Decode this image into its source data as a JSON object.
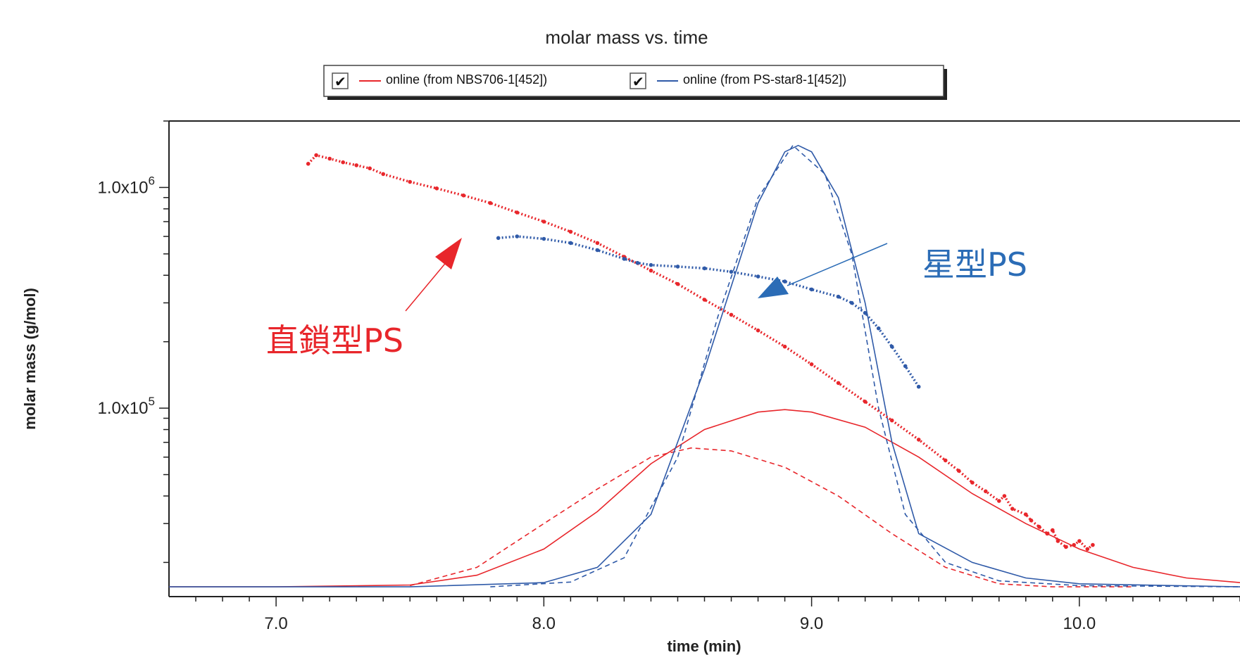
{
  "chart_data": {
    "type": "line",
    "title": "molar mass vs. time",
    "xlabel": "time (min)",
    "ylabel": "molar mass (g/mol)",
    "xlim": [
      6.6,
      10.6
    ],
    "xticks": [
      7.0,
      8.0,
      9.0,
      10.0
    ],
    "xtick_labels": [
      "7.0",
      "8.0",
      "9.0",
      "10.0"
    ],
    "y_scale": "log",
    "ylim": [
      14000,
      2000000
    ],
    "yticks": [
      {
        "value": 1000000,
        "base": "1.0x10",
        "exp": "6"
      },
      {
        "value": 100000,
        "base": "1.0x10",
        "exp": "5"
      }
    ],
    "grid": false,
    "legend": {
      "placement": "top-center",
      "entries": [
        {
          "label": "online (from NBS706-1[452])",
          "color": "#e8262b",
          "checked": true
        },
        {
          "label": "online (from PS-star8-1[452])",
          "color": "#2f5aa8",
          "checked": true
        }
      ]
    },
    "series": [
      {
        "name": "online (from NBS706-1[452])",
        "color": "#e8262b",
        "style": "dotted-markers",
        "points": [
          [
            7.12,
            1280000
          ],
          [
            7.15,
            1400000
          ],
          [
            7.2,
            1350000
          ],
          [
            7.25,
            1300000
          ],
          [
            7.3,
            1260000
          ],
          [
            7.35,
            1220000
          ],
          [
            7.4,
            1150000
          ],
          [
            7.5,
            1060000
          ],
          [
            7.6,
            990000
          ],
          [
            7.7,
            920000
          ],
          [
            7.8,
            850000
          ],
          [
            7.9,
            770000
          ],
          [
            8.0,
            700000
          ],
          [
            8.1,
            630000
          ],
          [
            8.2,
            560000
          ],
          [
            8.3,
            485000
          ],
          [
            8.4,
            420000
          ],
          [
            8.5,
            365000
          ],
          [
            8.6,
            310000
          ],
          [
            8.7,
            265000
          ],
          [
            8.8,
            225000
          ],
          [
            8.9,
            190000
          ],
          [
            9.0,
            158000
          ],
          [
            9.1,
            130000
          ],
          [
            9.2,
            107000
          ],
          [
            9.3,
            88000
          ],
          [
            9.4,
            72000
          ],
          [
            9.5,
            58000
          ],
          [
            9.55,
            52000
          ],
          [
            9.6,
            46000
          ],
          [
            9.65,
            42000
          ],
          [
            9.7,
            38000
          ],
          [
            9.72,
            40000
          ],
          [
            9.75,
            35000
          ],
          [
            9.8,
            33000
          ],
          [
            9.82,
            31000
          ],
          [
            9.85,
            29000
          ],
          [
            9.88,
            27000
          ],
          [
            9.9,
            28000
          ],
          [
            9.92,
            25000
          ],
          [
            9.95,
            23500
          ],
          [
            9.98,
            24000
          ],
          [
            10.0,
            25000
          ],
          [
            10.03,
            23000
          ],
          [
            10.05,
            24000
          ]
        ]
      },
      {
        "name": "online (from PS-star8-1[452])",
        "color": "#2f5aa8",
        "style": "dotted-markers",
        "points": [
          [
            7.83,
            590000
          ],
          [
            7.9,
            600000
          ],
          [
            8.0,
            585000
          ],
          [
            8.1,
            560000
          ],
          [
            8.2,
            520000
          ],
          [
            8.3,
            475000
          ],
          [
            8.35,
            455000
          ],
          [
            8.4,
            445000
          ],
          [
            8.5,
            438000
          ],
          [
            8.6,
            430000
          ],
          [
            8.7,
            415000
          ],
          [
            8.8,
            395000
          ],
          [
            8.9,
            375000
          ],
          [
            9.0,
            345000
          ],
          [
            9.1,
            320000
          ],
          [
            9.15,
            300000
          ],
          [
            9.2,
            270000
          ],
          [
            9.25,
            230000
          ],
          [
            9.3,
            190000
          ],
          [
            9.35,
            155000
          ],
          [
            9.4,
            125000
          ]
        ]
      },
      {
        "name": "",
        "color": "#e8262b",
        "style": "solid",
        "points": [
          [
            6.6,
            15500
          ],
          [
            7.0,
            15500
          ],
          [
            7.5,
            15800
          ],
          [
            7.75,
            17500
          ],
          [
            8.0,
            23000
          ],
          [
            8.2,
            34000
          ],
          [
            8.4,
            56000
          ],
          [
            8.6,
            80000
          ],
          [
            8.8,
            96000
          ],
          [
            8.9,
            98500
          ],
          [
            9.0,
            96000
          ],
          [
            9.2,
            82000
          ],
          [
            9.4,
            60000
          ],
          [
            9.6,
            41000
          ],
          [
            9.8,
            30000
          ],
          [
            10.0,
            23000
          ],
          [
            10.2,
            19000
          ],
          [
            10.4,
            17000
          ],
          [
            10.6,
            16200
          ]
        ]
      },
      {
        "name": "",
        "color": "#e8262b",
        "style": "dashed",
        "points": [
          [
            7.5,
            15700
          ],
          [
            7.75,
            19000
          ],
          [
            8.0,
            30000
          ],
          [
            8.2,
            43000
          ],
          [
            8.4,
            60000
          ],
          [
            8.55,
            66000
          ],
          [
            8.7,
            64000
          ],
          [
            8.9,
            54000
          ],
          [
            9.1,
            40000
          ],
          [
            9.3,
            27000
          ],
          [
            9.5,
            19000
          ],
          [
            9.7,
            16000
          ],
          [
            9.9,
            15500
          ],
          [
            10.2,
            15500
          ]
        ]
      },
      {
        "name": "",
        "color": "#2f5aa8",
        "style": "solid",
        "points": [
          [
            6.6,
            15500
          ],
          [
            7.5,
            15500
          ],
          [
            8.0,
            16200
          ],
          [
            8.2,
            19000
          ],
          [
            8.4,
            33000
          ],
          [
            8.6,
            150000
          ],
          [
            8.8,
            850000
          ],
          [
            8.9,
            1450000
          ],
          [
            8.95,
            1550000
          ],
          [
            9.0,
            1450000
          ],
          [
            9.1,
            900000
          ],
          [
            9.2,
            300000
          ],
          [
            9.3,
            70000
          ],
          [
            9.4,
            27000
          ],
          [
            9.6,
            20000
          ],
          [
            9.8,
            17000
          ],
          [
            10.0,
            16000
          ],
          [
            10.6,
            15500
          ]
        ]
      },
      {
        "name": "",
        "color": "#2f5aa8",
        "style": "dashed",
        "points": [
          [
            7.8,
            15500
          ],
          [
            8.1,
            16300
          ],
          [
            8.3,
            21000
          ],
          [
            8.5,
            60000
          ],
          [
            8.65,
            260000
          ],
          [
            8.8,
            900000
          ],
          [
            8.93,
            1550000
          ],
          [
            9.05,
            1150000
          ],
          [
            9.15,
            500000
          ],
          [
            9.25,
            100000
          ],
          [
            9.35,
            33000
          ],
          [
            9.5,
            20000
          ],
          [
            9.7,
            16500
          ],
          [
            10.0,
            15700
          ],
          [
            10.6,
            15500
          ]
        ]
      }
    ],
    "annotations": [
      {
        "text": "直鎖型PS",
        "color": "#e8262b"
      },
      {
        "text": "星型PS",
        "color": "#2b6cb6"
      }
    ]
  }
}
